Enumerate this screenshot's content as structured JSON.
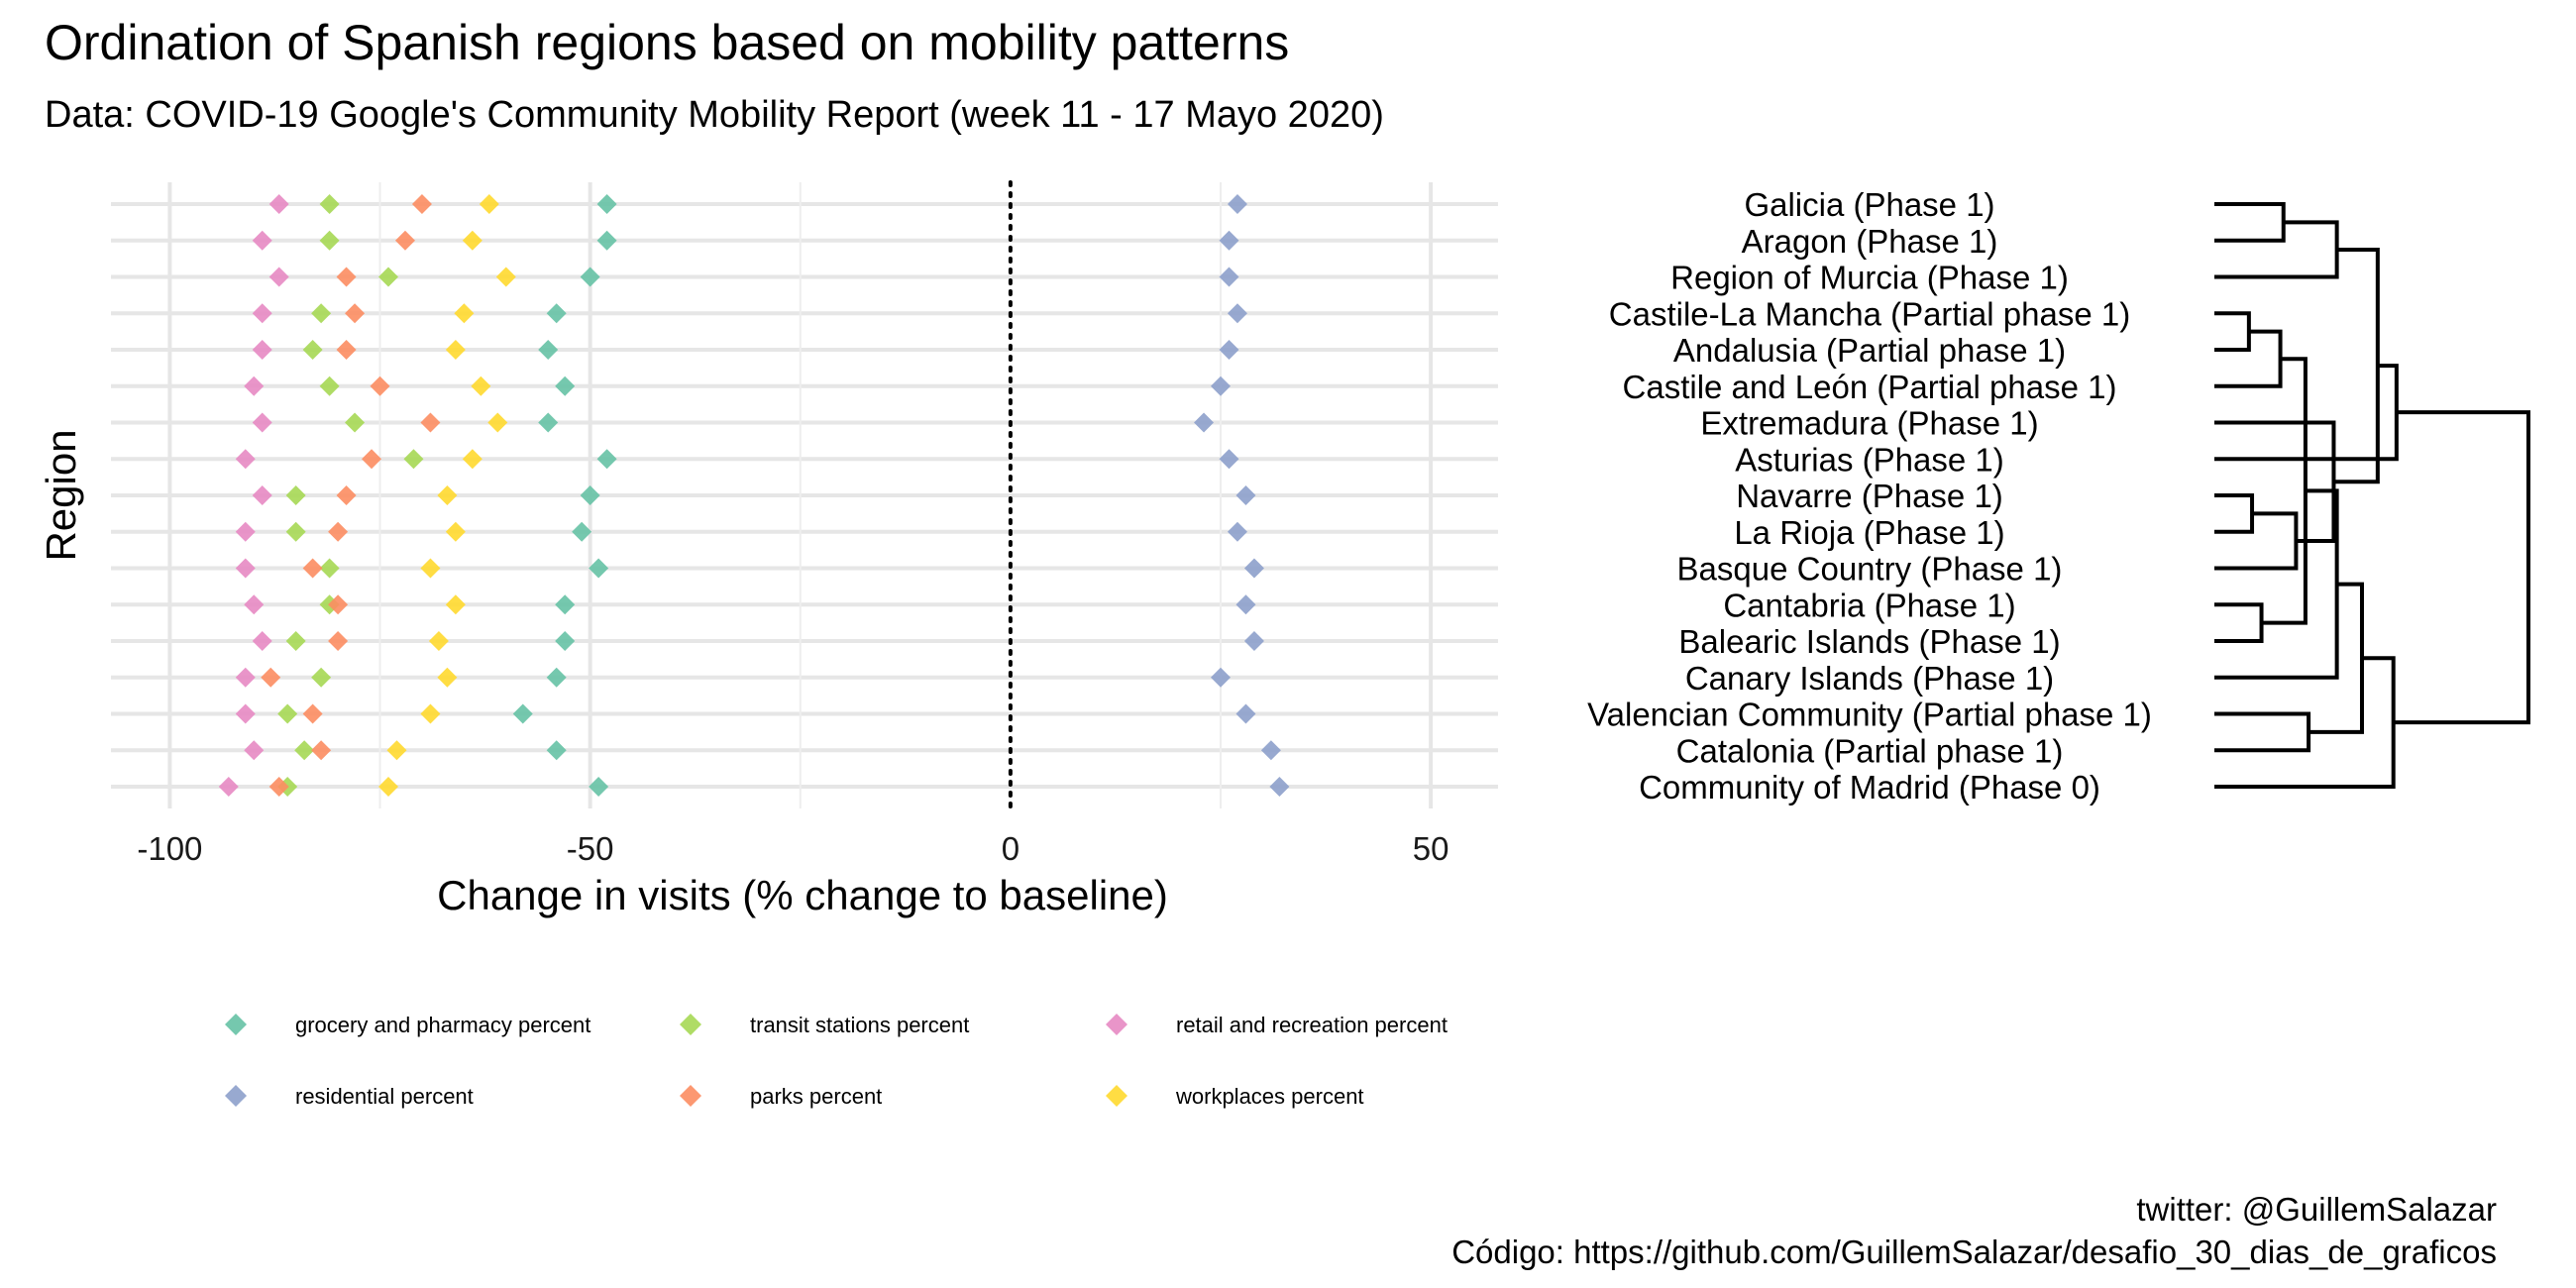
{
  "title": "Ordination of Spanish regions based on mobility patterns",
  "subtitle": "Data: COVID-19 Google's Community Mobility Report (week 11 - 17 Mayo 2020)",
  "caption": {
    "line1": "twitter: @GuillemSalazar",
    "line2": "Código: https://github.com/GuillemSalazar/desafio_30_dias_de_graficos"
  },
  "chart_data": {
    "type": "scatter",
    "title": "Ordination of Spanish regions based on mobility patterns",
    "subtitle": "Data: COVID-19 Google's Community Mobility Report (week 11 - 17 Mayo 2020)",
    "xlabel": "Change in visits (% change to baseline)",
    "ylabel": "Region",
    "xlim": [
      -107,
      58
    ],
    "x_ticks": [
      -100,
      -50,
      0,
      50
    ],
    "x_tick_labels": [
      "-100",
      "-50",
      "0",
      "50"
    ],
    "reference_line": {
      "x": 0,
      "style": "dotted"
    },
    "grid": true,
    "legend_position": "bottom",
    "regions": [
      "Galicia (Phase 1)",
      "Aragon (Phase 1)",
      "Region of Murcia (Phase 1)",
      "Castile-La Mancha (Partial phase 1)",
      "Andalusia (Partial phase 1)",
      "Castile and León (Partial phase 1)",
      "Extremadura (Phase 1)",
      "Asturias (Phase 1)",
      "Navarre (Phase 1)",
      "La Rioja (Phase 1)",
      "Basque Country (Phase 1)",
      "Cantabria (Phase 1)",
      "Balearic Islands (Phase 1)",
      "Canary Islands (Phase 1)",
      "Valencian Community (Partial phase 1)",
      "Catalonia (Partial phase 1)",
      "Community of Madrid (Phase 0)"
    ],
    "series": [
      {
        "name": "grocery and pharmacy percent",
        "color": "#66c2a5",
        "values": [
          -48,
          -48,
          -50,
          -54,
          -55,
          -53,
          -55,
          -48,
          -50,
          -51,
          -49,
          -53,
          -53,
          -54,
          -58,
          -54,
          -49
        ]
      },
      {
        "name": "residential percent",
        "color": "#8da0cb",
        "values": [
          27,
          26,
          26,
          27,
          26,
          25,
          23,
          26,
          28,
          27,
          29,
          28,
          29,
          25,
          28,
          31,
          32
        ]
      },
      {
        "name": "transit stations percent",
        "color": "#a6d854",
        "values": [
          -81,
          -81,
          -74,
          -82,
          -83,
          -81,
          -78,
          -71,
          -85,
          -85,
          -81,
          -81,
          -85,
          -82,
          -86,
          -84,
          -86
        ]
      },
      {
        "name": "parks percent",
        "color": "#fc8d62",
        "values": [
          -70,
          -72,
          -79,
          -78,
          -79,
          -75,
          -69,
          -76,
          -79,
          -80,
          -83,
          -80,
          -80,
          -88,
          -83,
          -82,
          -87
        ]
      },
      {
        "name": "retail and recreation percent",
        "color": "#e78ac3",
        "values": [
          -87,
          -89,
          -87,
          -89,
          -89,
          -90,
          -89,
          -91,
          -89,
          -91,
          -91,
          -90,
          -89,
          -91,
          -91,
          -90,
          -93
        ]
      },
      {
        "name": "workplaces percent",
        "color": "#ffd92f",
        "values": [
          -62,
          -64,
          -60,
          -65,
          -66,
          -63,
          -61,
          -64,
          -67,
          -66,
          -69,
          -66,
          -68,
          -67,
          -69,
          -73,
          -74
        ]
      }
    ],
    "dendrogram": {
      "leaf_order": [
        "Galicia (Phase 1)",
        "Aragon (Phase 1)",
        "Region of Murcia (Phase 1)",
        "Castile-La Mancha (Partial phase 1)",
        "Andalusia (Partial phase 1)",
        "Castile and León (Partial phase 1)",
        "Extremadura (Phase 1)",
        "Asturias (Phase 1)",
        "Navarre (Phase 1)",
        "La Rioja (Phase 1)",
        "Basque Country (Phase 1)",
        "Cantabria (Phase 1)",
        "Balearic Islands (Phase 1)",
        "Canary Islands (Phase 1)",
        "Valencian Community (Partial phase 1)",
        "Catalonia (Partial phase 1)",
        "Community of Madrid (Phase 0)"
      ],
      "merges": [
        {
          "left": 3,
          "right": 4,
          "height": 0.11
        },
        {
          "left": 8,
          "right": 9,
          "height": 0.12
        },
        {
          "left": 11,
          "right": 12,
          "height": 0.15
        },
        {
          "left": 0,
          "right": 1,
          "height": 0.22
        },
        {
          "left": "m1",
          "right": 5,
          "height": 0.21
        },
        {
          "left": "m2",
          "right": 10,
          "height": 0.26
        },
        {
          "left": 14,
          "right": 15,
          "height": 0.3
        },
        {
          "left": "m6",
          "right": 6,
          "height": 0.38
        },
        {
          "left": "m3",
          "right": "m5",
          "height": 0.29
        },
        {
          "left": "m4",
          "right": 2,
          "height": 0.39
        },
        {
          "left": "m10",
          "right": "m8",
          "height": 0.52
        },
        {
          "left": "m9",
          "right": 13,
          "height": 0.39
        },
        {
          "left": "m12",
          "right": "m7",
          "height": 0.47
        },
        {
          "left": "m11",
          "right": 7,
          "height": 0.58
        },
        {
          "left": "m13",
          "right": 16,
          "height": 0.57
        },
        {
          "left": "m14",
          "right": "m15",
          "height": 1.0
        }
      ]
    }
  }
}
